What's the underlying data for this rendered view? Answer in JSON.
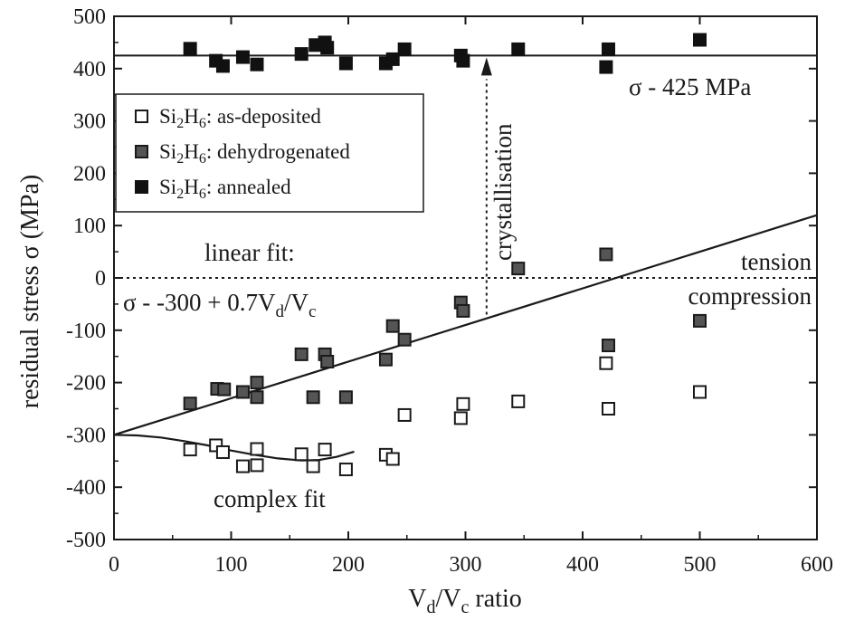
{
  "chart_data": {
    "type": "scatter",
    "xlim": [
      0,
      600
    ],
    "ylim": [
      -500,
      500
    ],
    "x_ticks": [
      "0",
      "100",
      "200",
      "300",
      "400",
      "500",
      "600"
    ],
    "y_ticks": [
      "-500",
      "-400",
      "-300",
      "-200",
      "-100",
      "0",
      "100",
      "200",
      "300",
      "400",
      "500"
    ],
    "xlabel": {
      "main": "V",
      "sub1": "d",
      "mid": "/V",
      "sub2": "c",
      "tail": " ratio"
    },
    "ylabel": "residual stress σ (MPa)",
    "legend_position": "top-left",
    "series": [
      {
        "name": {
          "pre": "Si",
          "sub1": "2",
          "mid": "H",
          "sub2": "6",
          "tail": ": as-deposited"
        },
        "marker": "open-square",
        "points": [
          [
            65,
            -328
          ],
          [
            87,
            -320
          ],
          [
            93,
            -333
          ],
          [
            110,
            -360
          ],
          [
            122,
            -358
          ],
          [
            122,
            -327
          ],
          [
            160,
            -337
          ],
          [
            170,
            -360
          ],
          [
            180,
            -328
          ],
          [
            198,
            -366
          ],
          [
            232,
            -338
          ],
          [
            238,
            -346
          ],
          [
            248,
            -262
          ],
          [
            296,
            -268
          ],
          [
            298,
            -241
          ],
          [
            345,
            -236
          ],
          [
            420,
            -163
          ],
          [
            422,
            -250
          ],
          [
            500,
            -218
          ]
        ]
      },
      {
        "name": {
          "pre": "Si",
          "sub1": "2",
          "mid": "H",
          "sub2": "6",
          "tail": ": dehydrogenated"
        },
        "marker": "gray-square",
        "points": [
          [
            65,
            -240
          ],
          [
            88,
            -212
          ],
          [
            94,
            -213
          ],
          [
            110,
            -218
          ],
          [
            122,
            -200
          ],
          [
            122,
            -228
          ],
          [
            160,
            -146
          ],
          [
            170,
            -228
          ],
          [
            180,
            -146
          ],
          [
            182,
            -160
          ],
          [
            198,
            -228
          ],
          [
            232,
            -156
          ],
          [
            238,
            -92
          ],
          [
            248,
            -118
          ],
          [
            296,
            -47
          ],
          [
            298,
            -63
          ],
          [
            345,
            18
          ],
          [
            420,
            45
          ],
          [
            422,
            -129
          ],
          [
            500,
            -82
          ]
        ]
      },
      {
        "name": {
          "pre": "Si",
          "sub1": "2",
          "mid": "H",
          "sub2": "6",
          "tail": ": annealed"
        },
        "marker": "black-square",
        "points": [
          [
            65,
            438
          ],
          [
            87,
            415
          ],
          [
            93,
            405
          ],
          [
            110,
            422
          ],
          [
            122,
            408
          ],
          [
            160,
            428
          ],
          [
            172,
            445
          ],
          [
            180,
            450
          ],
          [
            182,
            440
          ],
          [
            198,
            410
          ],
          [
            232,
            410
          ],
          [
            238,
            418
          ],
          [
            248,
            437
          ],
          [
            296,
            425
          ],
          [
            298,
            415
          ],
          [
            345,
            437
          ],
          [
            420,
            403
          ],
          [
            422,
            437
          ],
          [
            500,
            455
          ]
        ]
      }
    ],
    "lines": {
      "annealed_level": 425,
      "linear_fit": {
        "intercept": -300,
        "slope": 0.7
      },
      "zero_line": 0,
      "crystallisation_x": 318,
      "complex_fit": [
        [
          0,
          -300
        ],
        [
          20,
          -301
        ],
        [
          40,
          -305
        ],
        [
          60,
          -312
        ],
        [
          80,
          -320
        ],
        [
          100,
          -330
        ],
        [
          120,
          -338
        ],
        [
          140,
          -345
        ],
        [
          160,
          -349
        ],
        [
          175,
          -348
        ],
        [
          190,
          -342
        ],
        [
          205,
          -332
        ]
      ]
    },
    "annotations": {
      "annealed_label": "σ -  425 MPa",
      "linear_fit_title": "linear fit:",
      "linear_fit_eq": {
        "pre": "σ -  -300 + 0.7V",
        "sub1": "d",
        "mid": "/V",
        "sub2": "c"
      },
      "crystallisation": "crystallisation",
      "tension": "tension",
      "compression": "compression",
      "complex_fit": "complex fit"
    }
  }
}
